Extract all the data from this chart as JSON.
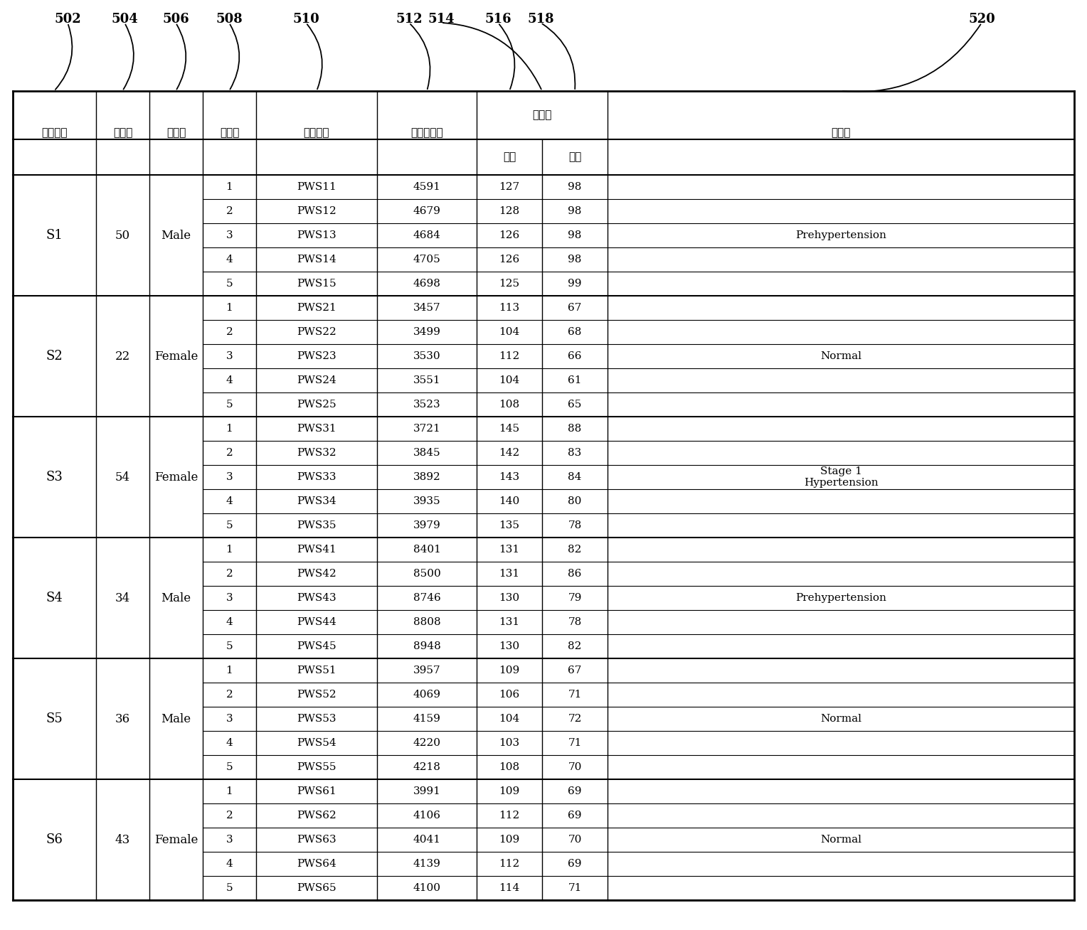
{
  "label_nums": [
    "502",
    "504",
    "506",
    "508",
    "510",
    "512",
    "514",
    "516",
    "518",
    "520"
  ],
  "header_tall": [
    "被測量者",
    "年　齢",
    "性　別",
    "次　数",
    "脈波信号",
    "震動波形数",
    "血　圧",
    "収　縮",
    "膨　胀",
    "備　注"
  ],
  "header_bp_top": "血　圧",
  "header_bp_sub1": "収縮",
  "header_bp_sub2": "膨胀",
  "subjects": [
    {
      "id": "S1",
      "age": "50",
      "gender": "Male",
      "rows": [
        [
          "1",
          "PWS11",
          "4591",
          "127",
          "98"
        ],
        [
          "2",
          "PWS12",
          "4679",
          "128",
          "98"
        ],
        [
          "3",
          "PWS13",
          "4684",
          "126",
          "98"
        ],
        [
          "4",
          "PWS14",
          "4705",
          "126",
          "98"
        ],
        [
          "5",
          "PWS15",
          "4698",
          "125",
          "99"
        ]
      ],
      "note": "Prehypertension"
    },
    {
      "id": "S2",
      "age": "22",
      "gender": "Female",
      "rows": [
        [
          "1",
          "PWS21",
          "3457",
          "113",
          "67"
        ],
        [
          "2",
          "PWS22",
          "3499",
          "104",
          "68"
        ],
        [
          "3",
          "PWS23",
          "3530",
          "112",
          "66"
        ],
        [
          "4",
          "PWS24",
          "3551",
          "104",
          "61"
        ],
        [
          "5",
          "PWS25",
          "3523",
          "108",
          "65"
        ]
      ],
      "note": "Normal"
    },
    {
      "id": "S3",
      "age": "54",
      "gender": "Female",
      "rows": [
        [
          "1",
          "PWS31",
          "3721",
          "145",
          "88"
        ],
        [
          "2",
          "PWS32",
          "3845",
          "142",
          "83"
        ],
        [
          "3",
          "PWS33",
          "3892",
          "143",
          "84"
        ],
        [
          "4",
          "PWS34",
          "3935",
          "140",
          "80"
        ],
        [
          "5",
          "PWS35",
          "3979",
          "135",
          "78"
        ]
      ],
      "note": "Stage 1\nHypertension"
    },
    {
      "id": "S4",
      "age": "34",
      "gender": "Male",
      "rows": [
        [
          "1",
          "PWS41",
          "8401",
          "131",
          "82"
        ],
        [
          "2",
          "PWS42",
          "8500",
          "131",
          "86"
        ],
        [
          "3",
          "PWS43",
          "8746",
          "130",
          "79"
        ],
        [
          "4",
          "PWS44",
          "8808",
          "131",
          "78"
        ],
        [
          "5",
          "PWS45",
          "8948",
          "130",
          "82"
        ]
      ],
      "note": "Prehypertension"
    },
    {
      "id": "S5",
      "age": "36",
      "gender": "Male",
      "rows": [
        [
          "1",
          "PWS51",
          "3957",
          "109",
          "67"
        ],
        [
          "2",
          "PWS52",
          "4069",
          "106",
          "71"
        ],
        [
          "3",
          "PWS53",
          "4159",
          "104",
          "72"
        ],
        [
          "4",
          "PWS54",
          "4220",
          "103",
          "71"
        ],
        [
          "5",
          "PWS55",
          "4218",
          "108",
          "70"
        ]
      ],
      "note": "Normal"
    },
    {
      "id": "S6",
      "age": "43",
      "gender": "Female",
      "rows": [
        [
          "1",
          "PWS61",
          "3991",
          "109",
          "69"
        ],
        [
          "2",
          "PWS62",
          "4106",
          "112",
          "69"
        ],
        [
          "3",
          "PWS63",
          "4041",
          "109",
          "70"
        ],
        [
          "4",
          "PWS64",
          "4139",
          "112",
          "69"
        ],
        [
          "5",
          "PWS65",
          "4100",
          "114",
          "71"
        ]
      ],
      "note": "Normal"
    }
  ],
  "bg_color": "#ffffff",
  "font_size_ref": 13,
  "font_size_header": 11,
  "font_size_data": 11,
  "font_size_note": 11
}
